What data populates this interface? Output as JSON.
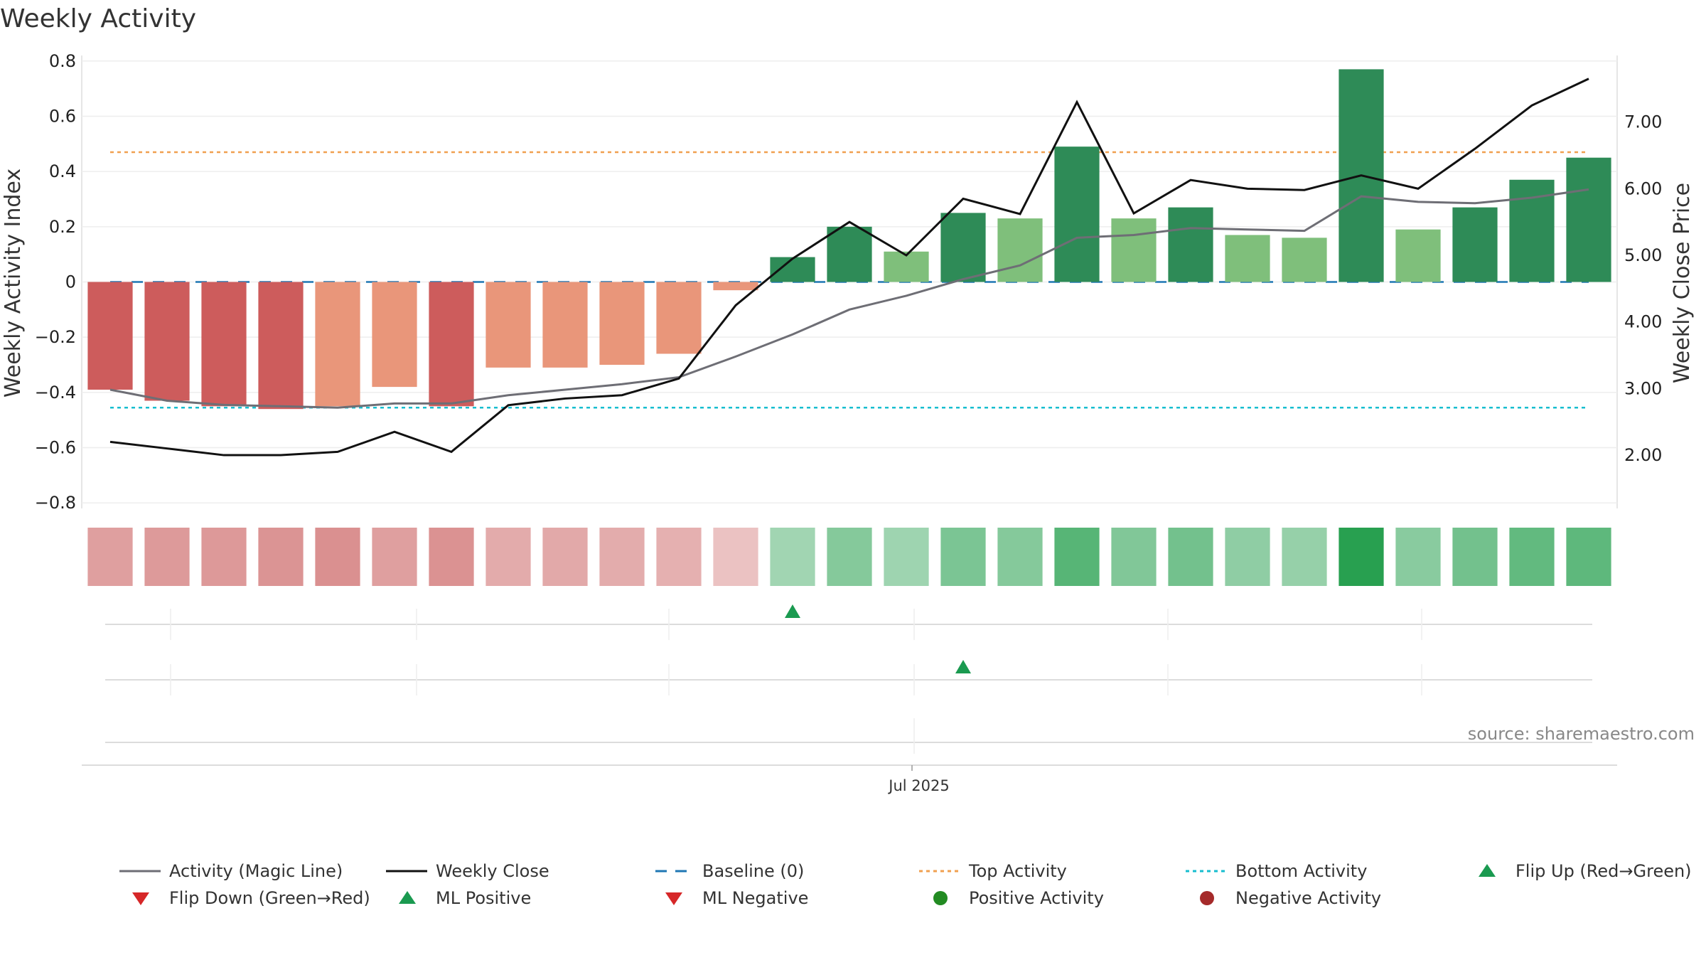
{
  "title": "Weekly Activity",
  "source": "source: sharemaestro.com",
  "colors": {
    "strong_neg": "#cd5c5c",
    "weak_neg": "#e9967a",
    "strong_pos": "#2e8b57",
    "weak_pos": "#7fbf7b",
    "magic_line": "#6e6e75",
    "close_line": "#111111",
    "baseline": "#1f77b4",
    "top": "#f0a050",
    "bottom": "#17becf",
    "flip_up": "#1a9a50",
    "flip_down": "#d62728"
  },
  "chart_data": {
    "type": "bar",
    "title": "Weekly Activity",
    "weeks": 27,
    "left_axis": {
      "label": "Weekly Activity Index",
      "ylim": [
        -0.82,
        0.82
      ],
      "ticks": [
        0.8,
        0.6,
        0.4,
        0.2,
        0,
        -0.2,
        -0.4,
        -0.6,
        -0.8
      ],
      "tick_labels": [
        "0.8",
        "0.6",
        "0.4",
        "0.2",
        "0",
        "−0.2",
        "−0.4",
        "−0.6",
        "−0.8"
      ]
    },
    "right_axis": {
      "label": "Weekly Close Price",
      "ylim": [
        1.2,
        8.0
      ],
      "ticks": [
        7,
        6,
        5,
        4,
        3,
        2
      ],
      "tick_labels": [
        "7.00",
        "6.00",
        "5.00",
        "4.00",
        "3.00",
        "2.00"
      ]
    },
    "x_tick_label": "Jul 2025",
    "x_tick_week": 14.6,
    "activity": [
      -0.39,
      -0.43,
      -0.45,
      -0.46,
      -0.45,
      -0.38,
      -0.45,
      -0.31,
      -0.31,
      -0.3,
      -0.26,
      -0.03,
      0.09,
      0.2,
      0.11,
      0.25,
      0.23,
      0.49,
      0.23,
      0.27,
      0.17,
      0.16,
      0.77,
      0.19,
      0.27,
      0.37,
      0.45
    ],
    "bar_strength": [
      "strong",
      "strong",
      "strong",
      "strong",
      "weak",
      "weak",
      "strong",
      "weak",
      "weak",
      "weak",
      "weak",
      "weak",
      "strong",
      "strong",
      "weak",
      "strong",
      "weak",
      "strong",
      "weak",
      "strong",
      "weak",
      "weak",
      "strong",
      "weak",
      "strong",
      "strong",
      "strong"
    ],
    "magic_line": [
      -0.39,
      -0.43,
      -0.445,
      -0.45,
      -0.455,
      -0.44,
      -0.44,
      -0.41,
      -0.39,
      -0.37,
      -0.345,
      -0.27,
      -0.19,
      -0.1,
      -0.05,
      0.01,
      0.06,
      0.16,
      0.17,
      0.195,
      0.19,
      0.185,
      0.31,
      0.29,
      0.285,
      0.305,
      0.335
    ],
    "weekly_close": [
      2.2,
      2.1,
      2.0,
      2.0,
      2.05,
      2.35,
      2.05,
      2.75,
      2.85,
      2.9,
      3.15,
      4.25,
      4.95,
      5.5,
      5.0,
      5.85,
      5.62,
      7.3,
      5.63,
      6.13,
      6.0,
      5.98,
      6.2,
      6.0,
      6.6,
      7.25,
      7.65
    ],
    "top_activity": 0.47,
    "bottom_activity": -0.455,
    "baseline": 0,
    "heat_strip": [
      0.55,
      0.6,
      0.62,
      0.66,
      0.7,
      0.55,
      0.68,
      0.43,
      0.45,
      0.42,
      0.38,
      0.2,
      0.28,
      0.45,
      0.3,
      0.5,
      0.45,
      0.72,
      0.48,
      0.55,
      0.38,
      0.35,
      1.0,
      0.42,
      0.55,
      0.65,
      0.68
    ],
    "flip_up_weeks": [
      12
    ],
    "ml_positive_weeks": [
      15
    ]
  },
  "legend": [
    {
      "label": "Activity (Magic Line)",
      "kind": "line",
      "color": "#6e6e75"
    },
    {
      "label": "Weekly Close",
      "kind": "line",
      "color": "#111111"
    },
    {
      "label": "Baseline (0)",
      "kind": "dash",
      "color": "#1f77b4"
    },
    {
      "label": "Top Activity",
      "kind": "dot",
      "color": "#f0a050"
    },
    {
      "label": "Bottom Activity",
      "kind": "dot",
      "color": "#17becf"
    },
    {
      "label": "Flip Up (Red→Green)",
      "kind": "tri-up",
      "color": "#1a9a50"
    },
    {
      "label": "Flip Down (Green→Red)",
      "kind": "tri-down",
      "color": "#d62728"
    },
    {
      "label": "ML Positive",
      "kind": "tri-up",
      "color": "#1a9a50"
    },
    {
      "label": "ML Negative",
      "kind": "tri-down",
      "color": "#d62728"
    },
    {
      "label": "Positive Activity",
      "kind": "circle",
      "color": "#228b22"
    },
    {
      "label": "Negative Activity",
      "kind": "circle",
      "color": "#a52a2a"
    }
  ]
}
